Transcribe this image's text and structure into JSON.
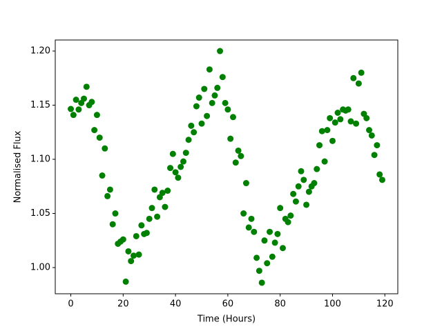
{
  "chart_data": {
    "type": "scatter",
    "x_label": "Time (Hours)",
    "y_label": "Normalised Flux",
    "color": "#008000",
    "x": [
      0,
      1,
      2,
      3,
      4,
      5,
      6,
      7,
      8,
      9,
      10,
      11,
      12,
      13,
      14,
      15,
      16,
      17,
      18,
      19,
      20,
      21,
      22,
      23,
      24,
      25,
      26,
      27,
      28,
      29,
      30,
      31,
      32,
      33,
      34,
      35,
      36,
      37,
      38,
      39,
      40,
      41,
      42,
      43,
      44,
      45,
      46,
      47,
      48,
      49,
      50,
      51,
      52,
      53,
      54,
      55,
      56,
      57,
      58,
      59,
      60,
      61,
      62,
      63,
      64,
      65,
      66,
      67,
      68,
      69,
      70,
      71,
      72,
      73,
      74,
      75,
      76,
      77,
      78,
      79,
      80,
      81,
      82,
      83,
      84,
      85,
      86,
      87,
      88,
      89,
      90,
      91,
      92,
      93,
      94,
      95,
      96,
      97,
      98,
      99,
      100,
      101,
      102,
      103,
      104,
      105,
      106,
      107,
      108,
      109,
      110,
      111,
      112,
      113,
      114,
      115,
      116,
      117,
      118,
      119
    ],
    "values": [
      1.1465,
      1.141,
      1.155,
      1.146,
      1.152,
      1.156,
      1.167,
      1.15,
      1.153,
      1.127,
      1.141,
      1.12,
      1.085,
      1.11,
      1.066,
      1.072,
      1.04,
      1.05,
      1.022,
      1.024,
      1.026,
      0.987,
      1.015,
      1.006,
      1.011,
      1.029,
      1.012,
      1.039,
      1.031,
      1.032,
      1.045,
      1.055,
      1.072,
      1.047,
      1.065,
      1.069,
      1.056,
      1.071,
      1.092,
      1.105,
      1.088,
      1.083,
      1.093,
      1.098,
      1.106,
      1.118,
      1.131,
      1.125,
      1.149,
      1.157,
      1.133,
      1.165,
      1.14,
      1.183,
      1.152,
      1.159,
      1.166,
      1.2,
      1.176,
      1.152,
      1.146,
      1.119,
      1.139,
      1.097,
      1.108,
      1.103,
      1.05,
      1.078,
      1.037,
      1.045,
      1.033,
      1.009,
      0.997,
      0.986,
      1.025,
      1.004,
      1.033,
      1.01,
      1.023,
      1.031,
      1.055,
      1.018,
      1.045,
      1.042,
      1.048,
      1.068,
      1.061,
      1.075,
      1.089,
      1.081,
      1.058,
      1.07,
      1.075,
      1.078,
      1.091,
      1.113,
      1.126,
      1.098,
      1.127,
      1.138,
      1.117,
      1.134,
      1.143,
      1.137,
      1.146,
      1.145,
      1.146,
      1.135,
      1.175,
      1.133,
      1.17,
      1.18,
      1.142,
      1.138,
      1.127,
      1.122,
      1.104,
      1.113,
      1.086,
      1.081
    ],
    "xlim": [
      -5.95,
      124.95
    ],
    "ylim": [
      0.9758,
      1.2102
    ],
    "xticks": [
      0,
      20,
      40,
      60,
      80,
      100,
      120
    ],
    "yticks": [
      {
        "value": 1,
        "label": "1.00"
      },
      1.05,
      {
        "value": 1.1,
        "label": "1.10"
      },
      1.15,
      {
        "value": 1.2,
        "label": "1.20"
      }
    ]
  }
}
